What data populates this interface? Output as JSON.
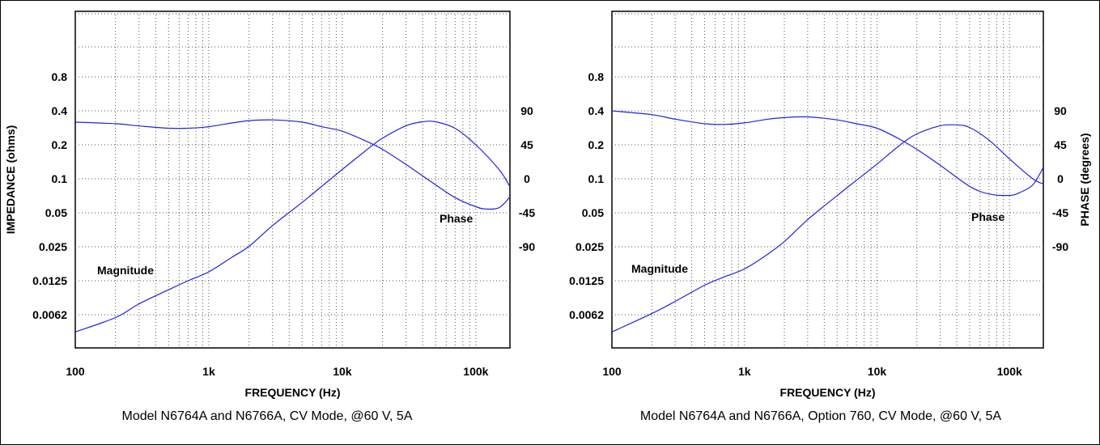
{
  "chart_data": [
    {
      "type": "line",
      "caption": "Model N6764A and N6766A, CV Mode, @60 V, 5A",
      "xlabel": "FREQUENCY (Hz)",
      "ylabel": "IMPEDANCE (ohms)",
      "y2label": "",
      "x_scale": "log",
      "xlim": [
        100,
        180000
      ],
      "x_ticks": [
        {
          "value": 100,
          "label": "100"
        },
        {
          "value": 1000,
          "label": "1k"
        },
        {
          "value": 10000,
          "label": "10k"
        },
        {
          "value": 100000,
          "label": "100k"
        }
      ],
      "y_ticks": [
        "0.8",
        "0.4",
        "0.2",
        "0.1",
        "0.05",
        "0.025",
        "0.0125",
        "0.0062"
      ],
      "y2_ticks": [
        {
          "value": 90,
          "label": "90"
        },
        {
          "value": 45,
          "label": "45"
        },
        {
          "value": 0,
          "label": "0"
        },
        {
          "value": -45,
          "label": "-45"
        },
        {
          "value": -90,
          "label": "-90"
        }
      ],
      "grid": true,
      "annotations": [
        "Magnitude",
        "Phase"
      ],
      "series": [
        {
          "name": "Magnitude",
          "axis": "left",
          "x": [
            100,
            200,
            300,
            500,
            700,
            1000,
            1500,
            2000,
            3000,
            5000,
            7000,
            10000,
            15000,
            20000,
            30000,
            40000,
            50000,
            70000,
            100000,
            150000,
            180000
          ],
          "y": [
            0.0044,
            0.0059,
            0.0078,
            0.0104,
            0.0125,
            0.015,
            0.0203,
            0.0252,
            0.0385,
            0.0618,
            0.0857,
            0.121,
            0.178,
            0.229,
            0.295,
            0.32,
            0.32,
            0.28,
            0.2,
            0.12,
            0.085
          ]
        },
        {
          "name": "Phase",
          "axis": "right",
          "x": [
            100,
            200,
            300,
            500,
            700,
            1000,
            1500,
            2000,
            3000,
            5000,
            7000,
            10000,
            15000,
            20000,
            30000,
            50000,
            70000,
            100000,
            120000,
            150000,
            180000
          ],
          "y": [
            75,
            73,
            70,
            67,
            67,
            69,
            74,
            77,
            78,
            75,
            69,
            63,
            50,
            39,
            19,
            -8,
            -25,
            -37,
            -40,
            -38,
            -24
          ]
        }
      ]
    },
    {
      "type": "line",
      "caption": "Model N6764A and N6766A, Option 760, CV Mode, @60 V, 5A",
      "xlabel": "FREQUENCY (Hz)",
      "ylabel": "",
      "y2label": "PHASE (degrees)",
      "x_scale": "log",
      "xlim": [
        100,
        180000
      ],
      "x_ticks": [
        {
          "value": 100,
          "label": "100"
        },
        {
          "value": 1000,
          "label": "1k"
        },
        {
          "value": 10000,
          "label": "10k"
        },
        {
          "value": 100000,
          "label": "100k"
        }
      ],
      "y_ticks": [
        "0.8",
        "0.4",
        "0.2",
        "0.1",
        "0.05",
        "0.025",
        "0.0125",
        "0.0062"
      ],
      "y2_ticks": [
        {
          "value": 90,
          "label": "90"
        },
        {
          "value": 45,
          "label": "45"
        },
        {
          "value": 0,
          "label": "0"
        },
        {
          "value": -45,
          "label": "-45"
        },
        {
          "value": -90,
          "label": "-90"
        }
      ],
      "grid": true,
      "annotations": [
        "Magnitude",
        "Phase"
      ],
      "series": [
        {
          "name": "Magnitude",
          "axis": "left",
          "x": [
            100,
            200,
            300,
            500,
            700,
            1000,
            1500,
            2000,
            3000,
            5000,
            7000,
            10000,
            15000,
            20000,
            30000,
            40000,
            50000,
            70000,
            100000,
            150000,
            180000
          ],
          "y": [
            0.0044,
            0.0064,
            0.0082,
            0.0114,
            0.0135,
            0.0159,
            0.0215,
            0.0278,
            0.0435,
            0.071,
            0.097,
            0.135,
            0.2,
            0.25,
            0.295,
            0.3,
            0.285,
            0.22,
            0.15,
            0.1,
            0.09
          ]
        },
        {
          "name": "Phase",
          "axis": "right",
          "x": [
            100,
            200,
            300,
            500,
            700,
            1000,
            1500,
            2000,
            3000,
            5000,
            7000,
            10000,
            15000,
            20000,
            30000,
            50000,
            70000,
            100000,
            120000,
            150000,
            180000
          ],
          "y": [
            90,
            85,
            79,
            73,
            72,
            74,
            79,
            81,
            82,
            78,
            73,
            67,
            52,
            39,
            18,
            -10,
            -20,
            -22,
            -18,
            -8,
            15
          ]
        }
      ]
    }
  ]
}
